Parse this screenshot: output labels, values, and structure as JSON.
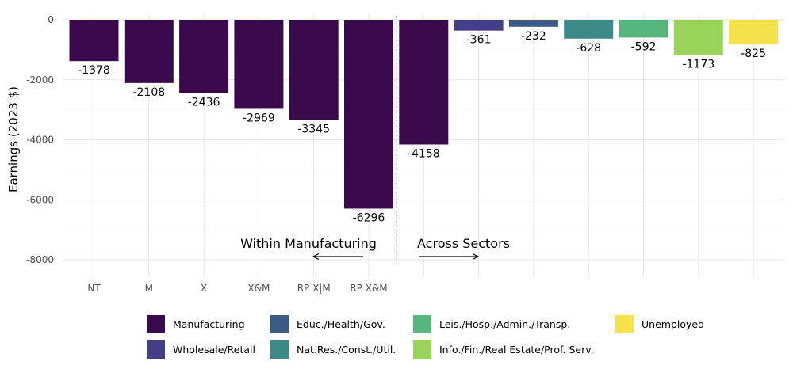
{
  "chart_data": {
    "type": "bar",
    "ylabel": "Earnings (2023 $)",
    "ylim": [
      -8500,
      250
    ],
    "yticks": [
      0,
      -2000,
      -4000,
      -6000,
      -8000
    ],
    "grid": true,
    "categories": [
      "NT",
      "M",
      "X",
      "X&M",
      "RP X|M",
      "RP X&M",
      "",
      "",
      "",
      "",
      "",
      "",
      ""
    ],
    "values": [
      -1378,
      -2108,
      -2436,
      -2969,
      -3345,
      -6296,
      -4158,
      -361,
      -232,
      -628,
      -592,
      -1173,
      -825
    ],
    "bar_sectors": [
      "Manufacturing",
      "Manufacturing",
      "Manufacturing",
      "Manufacturing",
      "Manufacturing",
      "Manufacturing",
      "Manufacturing",
      "Wholesale/Retail",
      "Educ./Health/Gov.",
      "Nat.Res./Const./Util.",
      "Leis./Hosp./Admin./Transp.",
      "Info./Fin./Real Estate/Prof. Serv.",
      "Unemployed"
    ],
    "value_labels": [
      "-1378",
      "-2108",
      "-2436",
      "-2969",
      "-3345",
      "-6296",
      "-4158",
      "-361",
      "-232",
      "-628",
      "-592",
      "-1173",
      "-825"
    ],
    "divider_after_index": 5,
    "annotations": [
      {
        "text": "Within Manufacturing",
        "arrow": "left"
      },
      {
        "text": "Across Sectors",
        "arrow": "right"
      }
    ],
    "legend": {
      "position": "bottom",
      "items": [
        {
          "name": "Manufacturing",
          "color": "#3b0a4d"
        },
        {
          "name": "Educ./Health/Gov.",
          "color": "#3b5a85"
        },
        {
          "name": "Leis./Hosp./Admin./Transp.",
          "color": "#57b57d"
        },
        {
          "name": "Unemployed",
          "color": "#f5e24a"
        },
        {
          "name": "Wholesale/Retail",
          "color": "#433e85"
        },
        {
          "name": "Nat.Res./Const./Util.",
          "color": "#3c8a87"
        },
        {
          "name": "Info./Fin./Real Estate/Prof. Serv.",
          "color": "#9ad35a"
        }
      ]
    }
  }
}
